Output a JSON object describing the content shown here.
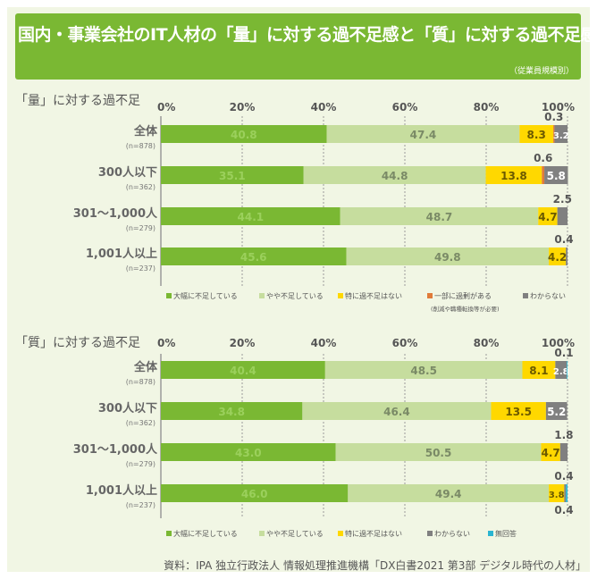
{
  "header": {
    "title": "国内・事業会社のIT人材の「量」に対する過不足感と「質」に対する過不足感",
    "subtitle": "（従業員規模別）"
  },
  "colors": {
    "large_shortage": "#7ab833",
    "slight_shortage": "#c6dd9e",
    "no_shortage": "#ffd800",
    "excess": "#e07b39",
    "unknown": "#808080",
    "no_answer": "#2ab5d1"
  },
  "chart_data": [
    {
      "type": "bar",
      "orientation": "horizontal-stacked",
      "title": "「量」に対する過不足",
      "xlim": [
        0,
        100
      ],
      "ticks": [
        "0%",
        "20%",
        "40%",
        "60%",
        "80%",
        "100%"
      ],
      "categories": [
        "全体",
        "300人以下",
        "301～1,000人",
        "1,001人以上"
      ],
      "category_notes": [
        "(n=878)",
        "(n=362)",
        "(n=279)",
        "(n=237)"
      ],
      "series": [
        {
          "name": "大幅に不足している",
          "values": [
            40.8,
            35.1,
            44.1,
            45.6
          ]
        },
        {
          "name": "やや不足している",
          "values": [
            47.4,
            44.8,
            48.7,
            49.8
          ]
        },
        {
          "name": "特に過不足はない",
          "values": [
            8.3,
            13.8,
            4.7,
            4.2
          ]
        },
        {
          "name": "一部に過剰がある",
          "values": [
            0.3,
            0.6,
            0,
            0
          ]
        },
        {
          "name": "わからない",
          "values": [
            3.2,
            5.8,
            2.5,
            0.4
          ]
        }
      ],
      "data_labels": [
        [
          "40.8",
          "47.4",
          "8.3",
          "0.3",
          "3.2"
        ],
        [
          "35.1",
          "44.8",
          "13.8",
          "0.6",
          "5.8"
        ],
        [
          "44.1",
          "48.7",
          "4.7",
          "",
          "2.5"
        ],
        [
          "45.6",
          "49.8",
          "4.2",
          "",
          "0.4"
        ]
      ],
      "legend_note": "(削減や職種転換等が必要)"
    },
    {
      "type": "bar",
      "orientation": "horizontal-stacked",
      "title": "「質」に対する過不足",
      "xlim": [
        0,
        100
      ],
      "ticks": [
        "0%",
        "20%",
        "40%",
        "60%",
        "80%",
        "100%"
      ],
      "categories": [
        "全体",
        "300人以下",
        "301～1,000人",
        "1,001人以上"
      ],
      "category_notes": [
        "(n=878)",
        "(n=362)",
        "(n=279)",
        "(n=237)"
      ],
      "series": [
        {
          "name": "大幅に不足している",
          "values": [
            40.4,
            34.8,
            43.0,
            46.0
          ]
        },
        {
          "name": "やや不足している",
          "values": [
            48.5,
            46.4,
            50.5,
            49.4
          ]
        },
        {
          "name": "特に過不足はない",
          "values": [
            8.1,
            13.5,
            4.7,
            3.8
          ]
        },
        {
          "name": "わからない",
          "values": [
            2.8,
            5.2,
            1.8,
            0.4
          ]
        },
        {
          "name": "無回答",
          "values": [
            0.1,
            0,
            0,
            0.4
          ]
        }
      ],
      "data_labels": [
        [
          "40.4",
          "48.5",
          "8.1",
          "2.8",
          "0.1"
        ],
        [
          "34.8",
          "46.4",
          "13.5",
          "5.2",
          ""
        ],
        [
          "43.0",
          "50.5",
          "4.7",
          "1.8",
          ""
        ],
        [
          "46.0",
          "49.4",
          "3.8",
          "0.4",
          "0.4"
        ]
      ]
    }
  ],
  "source": "資料：IPA 独立行政法人 情報処理推進機構「DX白書2021 第3部 デジタル時代の人材」"
}
